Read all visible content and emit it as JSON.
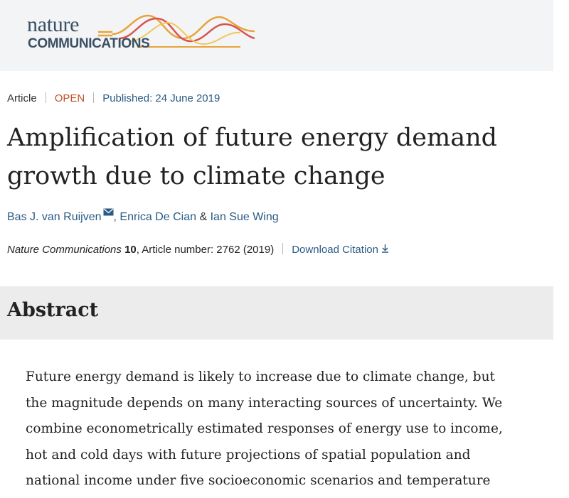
{
  "header": {
    "logo_word": "nature",
    "logo_sub": "COMMUNICATIONS"
  },
  "meta": {
    "type": "Article",
    "access": "OPEN",
    "published": "Published: 24 June 2019"
  },
  "title_lines": [
    "Amplification of future energy demand",
    "growth due to climate change"
  ],
  "authors": {
    "a1": "Bas J. van Ruijven",
    "a2": "Enrica De Cian",
    "amp": "&",
    "a3": "Ian Sue Wing"
  },
  "citation": {
    "journal": "Nature Communications",
    "volume": "10",
    "rest": ", Article number: 2762 (2019)",
    "download": "Download Citation"
  },
  "abstract": {
    "heading": "Abstract",
    "lines": [
      "Future energy demand is likely to increase due to climate change, but",
      "the magnitude depends on many interacting sources of uncertainty. We",
      "combine econometrically estimated responses of energy use to income,",
      "hot and cold days with future projections of spatial population and",
      "national income under five socioeconomic scenarios and temperature"
    ]
  },
  "colors": {
    "link": "#2a5b84",
    "open": "#c0542b",
    "header_bg": "#f3f4f6",
    "abstract_bg": "#ececec"
  },
  "icons": [
    "wave-logo-icon",
    "mail-icon",
    "download-icon"
  ]
}
